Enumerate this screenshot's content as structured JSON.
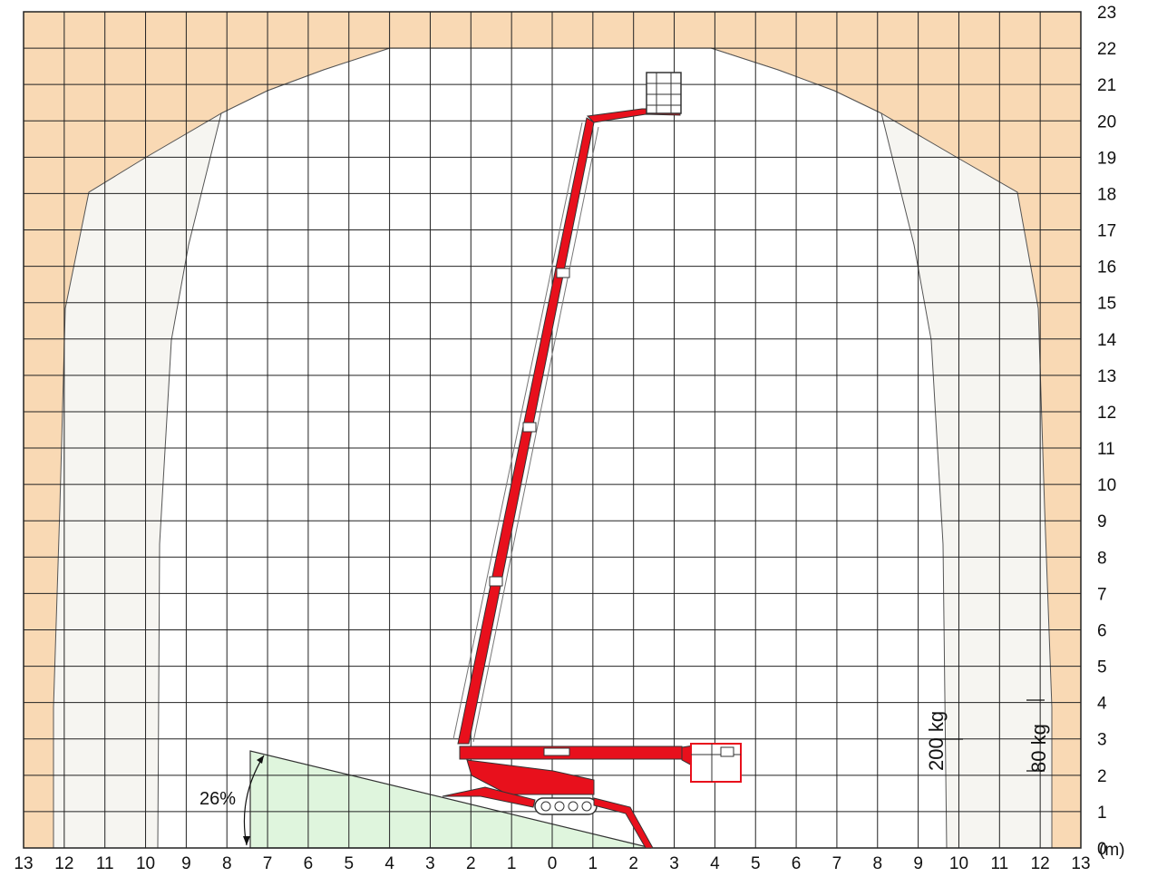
{
  "diagram": {
    "units_label": "(m)",
    "x_ticks": [
      "13",
      "12",
      "11",
      "10",
      "9",
      "8",
      "7",
      "6",
      "5",
      "4",
      "3",
      "2",
      "1",
      "0",
      "1",
      "2",
      "3",
      "4",
      "5",
      "6",
      "7",
      "8",
      "9",
      "10",
      "11",
      "12",
      "13"
    ],
    "y_ticks": [
      "0",
      "1",
      "2",
      "3",
      "4",
      "5",
      "6",
      "7",
      "8",
      "9",
      "10",
      "11",
      "12",
      "13",
      "14",
      "15",
      "16",
      "17",
      "18",
      "19",
      "20",
      "21",
      "22",
      "23"
    ],
    "x_range": [
      -13,
      13
    ],
    "y_range": [
      0,
      23
    ],
    "capacity_labels": {
      "inner": "200 kg",
      "outer": "80 kg"
    },
    "slope_label": "26%",
    "colors": {
      "outside_zone": "#f9d9b4",
      "reduced_zone": "#f6f5f1",
      "slope": "#dff5dd",
      "boom": "#e8101c",
      "grid": "#222222"
    }
  }
}
